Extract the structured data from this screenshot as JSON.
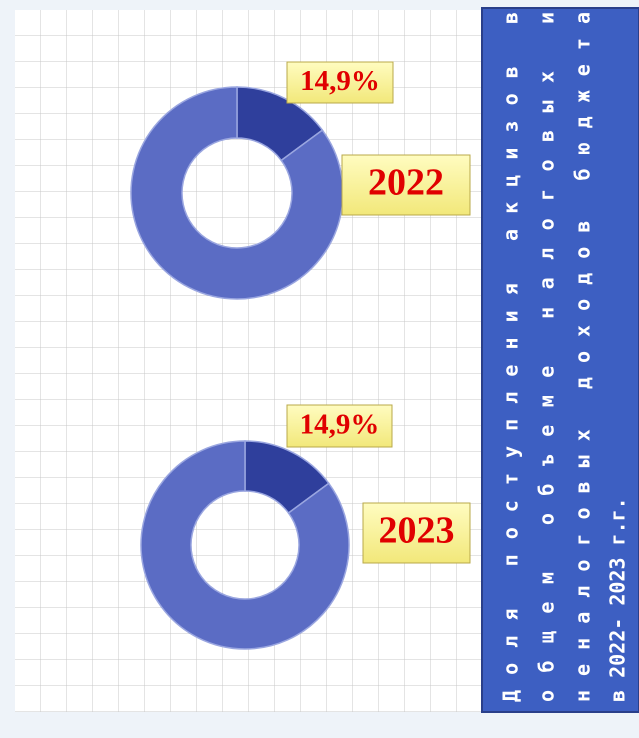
{
  "title": [
    "Доля поступления акцизов в",
    "общем объеме налоговых и",
    "неналоговых доходов бюджета",
    "в 2022- 2023 г.г."
  ],
  "chart_data": [
    {
      "type": "donut",
      "title": "2022",
      "values": [
        14.9,
        85.1
      ],
      "value_labels": [
        "14,9%",
        null
      ],
      "colors": [
        "#2f3f9c",
        "#5b6cc4"
      ]
    },
    {
      "type": "donut",
      "title": "2023",
      "values": [
        14.9,
        85.1
      ],
      "value_labels": [
        "14,9%",
        null
      ],
      "colors": [
        "#2f3f9c",
        "#5b6cc4"
      ]
    }
  ]
}
